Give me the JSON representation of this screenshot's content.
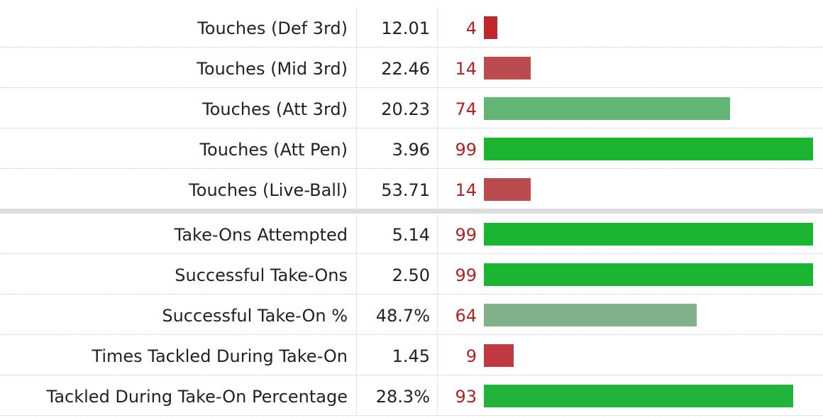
{
  "chart_data": {
    "type": "bar",
    "xlim": [
      0,
      99
    ],
    "rows": [
      {
        "label": "Touches (Def 3rd)",
        "value": "12.01",
        "percentile": 4,
        "color": "#c0272d"
      },
      {
        "label": "Touches (Mid 3rd)",
        "value": "22.46",
        "percentile": 14,
        "color": "#bc4b4f"
      },
      {
        "label": "Touches (Att 3rd)",
        "value": "20.23",
        "percentile": 74,
        "color": "#62b574"
      },
      {
        "label": "Touches (Att Pen)",
        "value": "3.96",
        "percentile": 99,
        "color": "#1bb531"
      },
      {
        "label": "Touches (Live-Ball)",
        "value": "53.71",
        "percentile": 14,
        "color": "#bc4b4f"
      },
      {
        "label": "Take-Ons Attempted",
        "value": "5.14",
        "percentile": 99,
        "color": "#1bb531"
      },
      {
        "label": "Successful Take-Ons",
        "value": "2.50",
        "percentile": 99,
        "color": "#1bb531"
      },
      {
        "label": "Successful Take-On %",
        "value": "48.7%",
        "percentile": 64,
        "color": "#80b18b"
      },
      {
        "label": "Times Tackled During Take-On",
        "value": "1.45",
        "percentile": 9,
        "color": "#c0393e"
      },
      {
        "label": "Tackled During Take-On Percentage",
        "value": "28.3%",
        "percentile": 93,
        "color": "#22b33a"
      }
    ]
  },
  "colors": {
    "percentile_text": "#b22222",
    "divider": "#dcdcdc"
  }
}
